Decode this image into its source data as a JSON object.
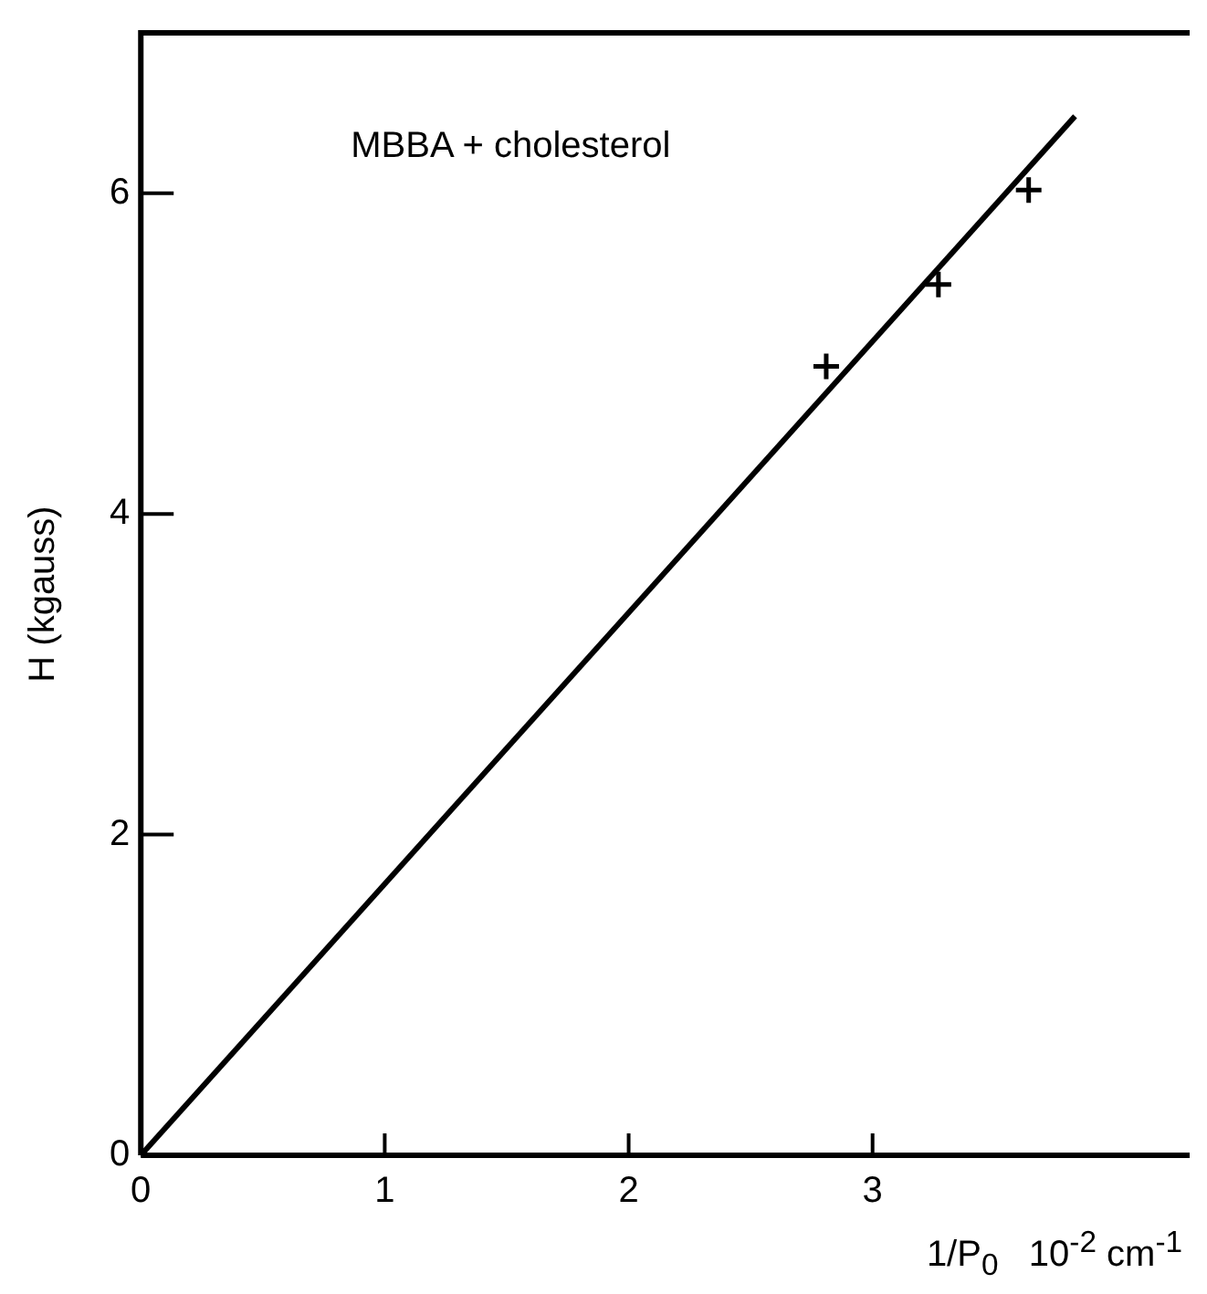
{
  "chart_data": {
    "type": "scatter",
    "xlabel": "1/P$_{0}$   10$^{-2}$ cm$^{-1}$",
    "ylabel": "H (kgauss)",
    "annotations": [
      "MBBA + cholesterol"
    ],
    "xlim": [
      0,
      4.3
    ],
    "ylim": [
      0,
      7
    ],
    "xticks": [
      0,
      1,
      2,
      3
    ],
    "yticks": [
      0,
      2,
      4,
      6
    ],
    "grid": false,
    "legend": false,
    "marker": "cross",
    "series": [
      {
        "color": "#000000",
        "x": [
          2.81,
          3.27,
          3.64
        ],
        "values": [
          4.92,
          5.43,
          6.02
        ]
      },
      {
        "type": "line",
        "color": "#000000",
        "x": [
          0,
          3.83
        ],
        "values": [
          0,
          6.48
        ],
        "marker": "none",
        "line_style": "solid"
      }
    ]
  }
}
